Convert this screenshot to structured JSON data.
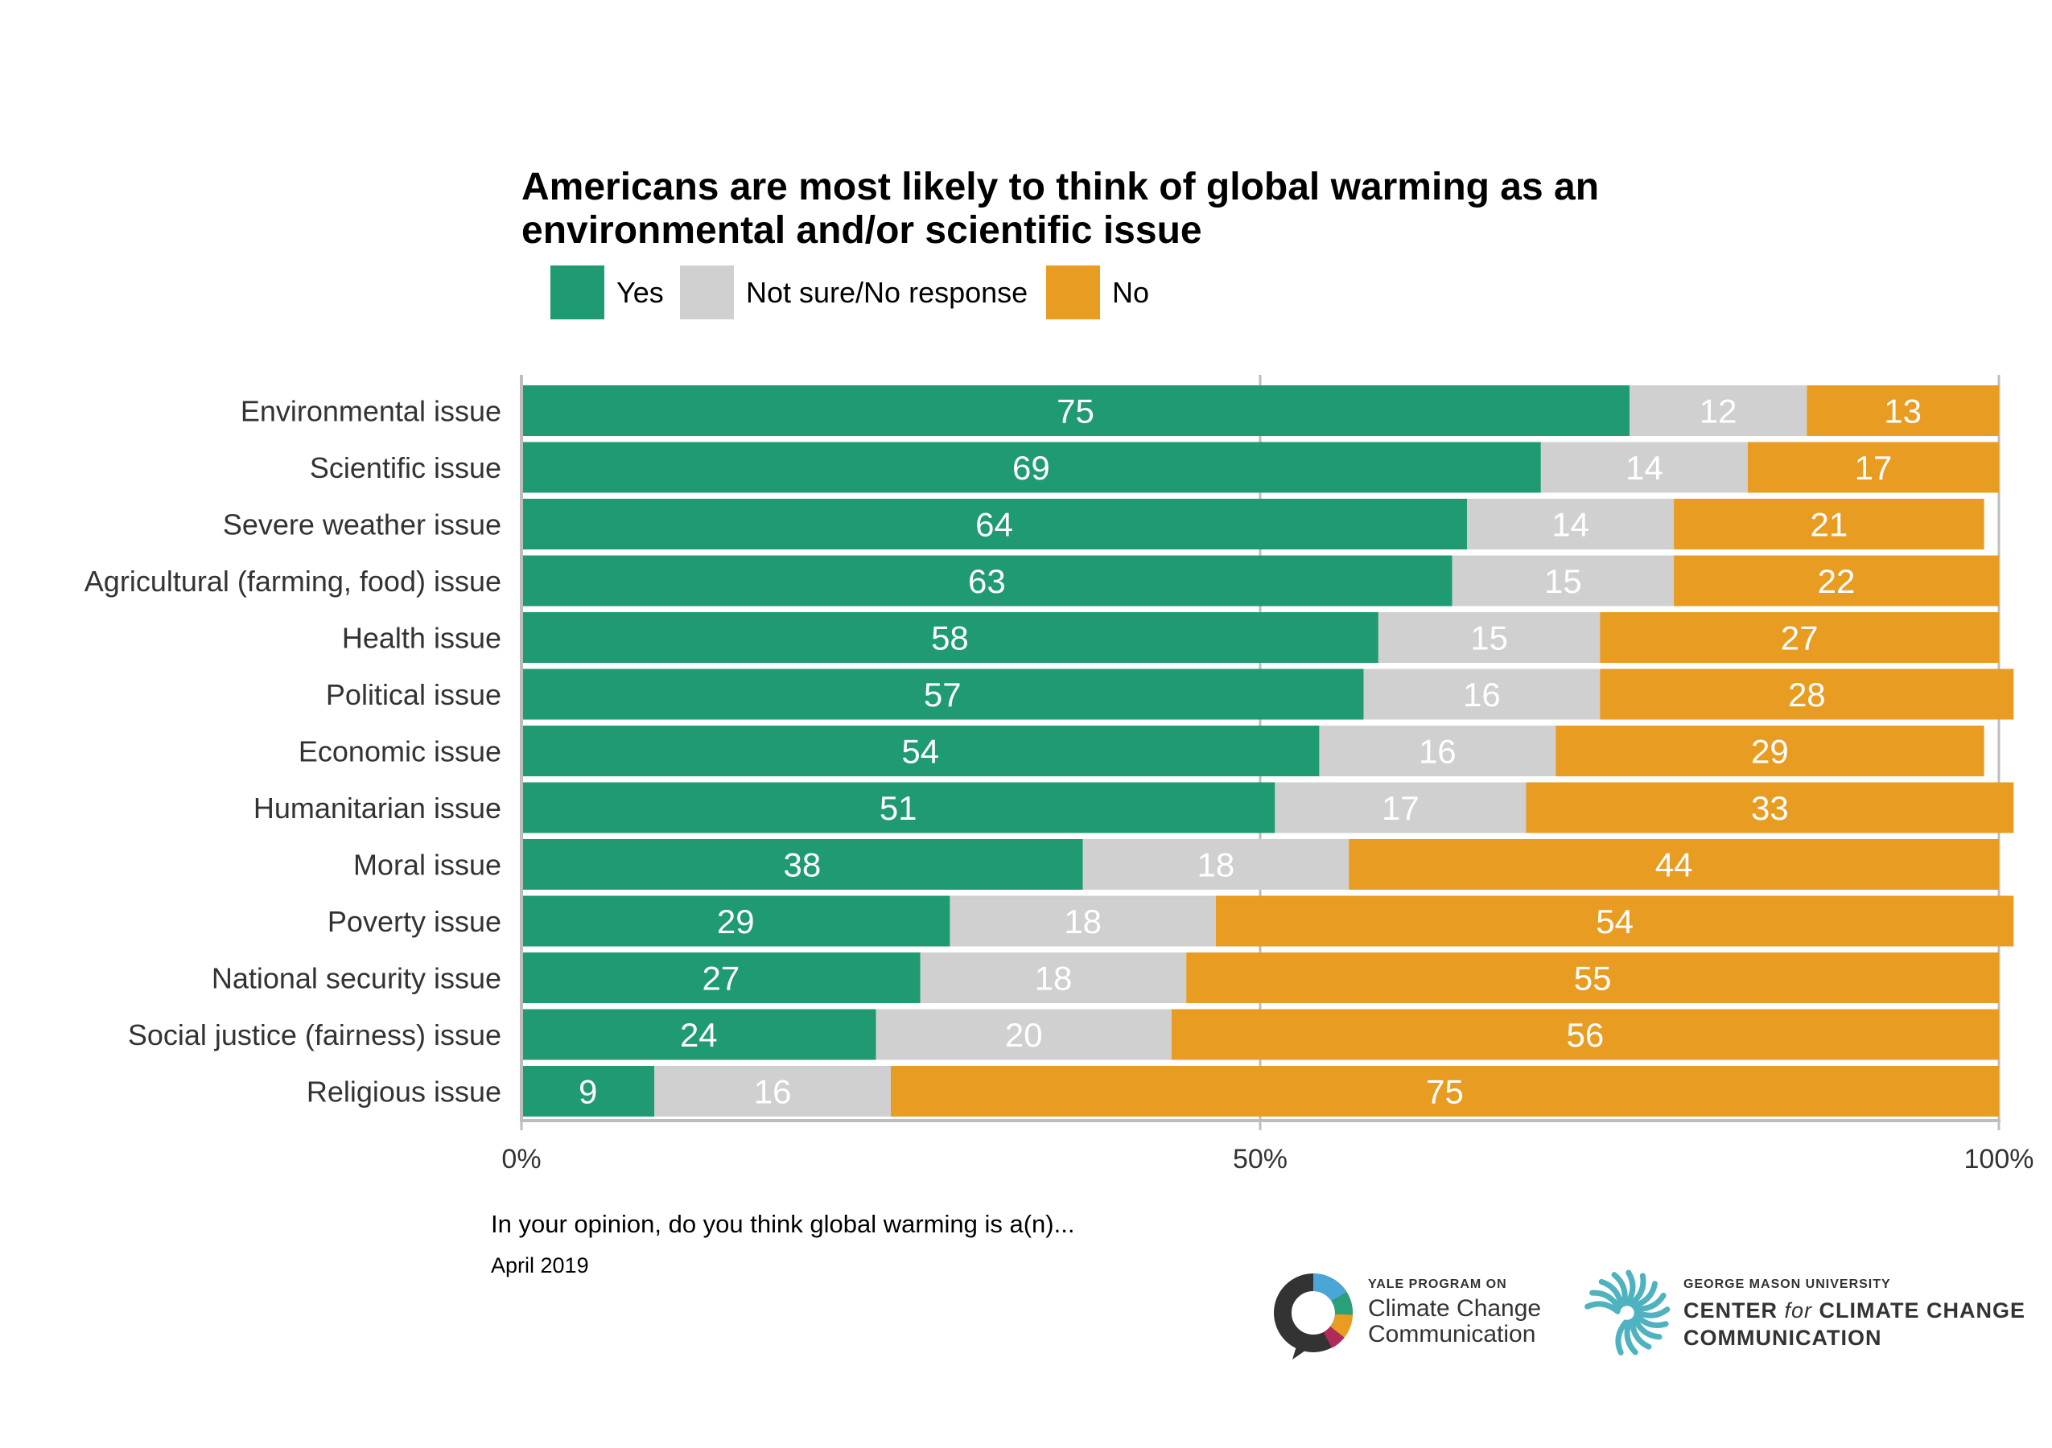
{
  "chart_data": {
    "type": "bar",
    "orientation": "horizontal",
    "stacked": true,
    "title": "Americans are most likely to think of global warming as an environmental and/or scientific issue",
    "title_lines": [
      "Americans are most likely to think of global warming as an",
      "environmental and/or scientific issue"
    ],
    "categories": [
      "Environmental issue",
      "Scientific issue",
      "Severe weather issue",
      "Agricultural (farming, food) issue",
      "Health issue",
      "Political issue",
      "Economic issue",
      "Humanitarian issue",
      "Moral issue",
      "Poverty issue",
      "National security issue",
      "Social justice (fairness) issue",
      "Religious issue"
    ],
    "series": [
      {
        "name": "Yes",
        "color": "#1f9a72",
        "values": [
          75,
          69,
          64,
          63,
          58,
          57,
          54,
          51,
          38,
          29,
          27,
          24,
          9
        ]
      },
      {
        "name": "Not sure/No response",
        "color": "#d0d0d0",
        "values": [
          12,
          14,
          14,
          15,
          15,
          16,
          16,
          17,
          18,
          18,
          18,
          20,
          16
        ]
      },
      {
        "name": "No",
        "color": "#e89d22",
        "values": [
          13,
          17,
          21,
          22,
          27,
          28,
          29,
          33,
          44,
          54,
          55,
          56,
          75
        ]
      }
    ],
    "xlim": [
      0,
      100
    ],
    "x_ticks": [
      0,
      50,
      100
    ],
    "x_tick_labels": [
      "0%",
      "50%",
      "100%"
    ],
    "legend_position": "top-left",
    "grid": true,
    "xlabel": "",
    "ylabel": ""
  },
  "footer": {
    "question": "In your opinion, do you think global warming is a(n)...",
    "date": "April 2019"
  },
  "logos": {
    "yale": {
      "small": "YALE PROGRAM ON",
      "line1": "Climate Change",
      "line2": "Communication"
    },
    "gmu": {
      "small": "GEORGE MASON UNIVERSITY",
      "line1_pre": "CENTER ",
      "line1_for": "for",
      "line1_post": " CLIMATE CHANGE",
      "line2": "COMMUNICATION"
    }
  }
}
